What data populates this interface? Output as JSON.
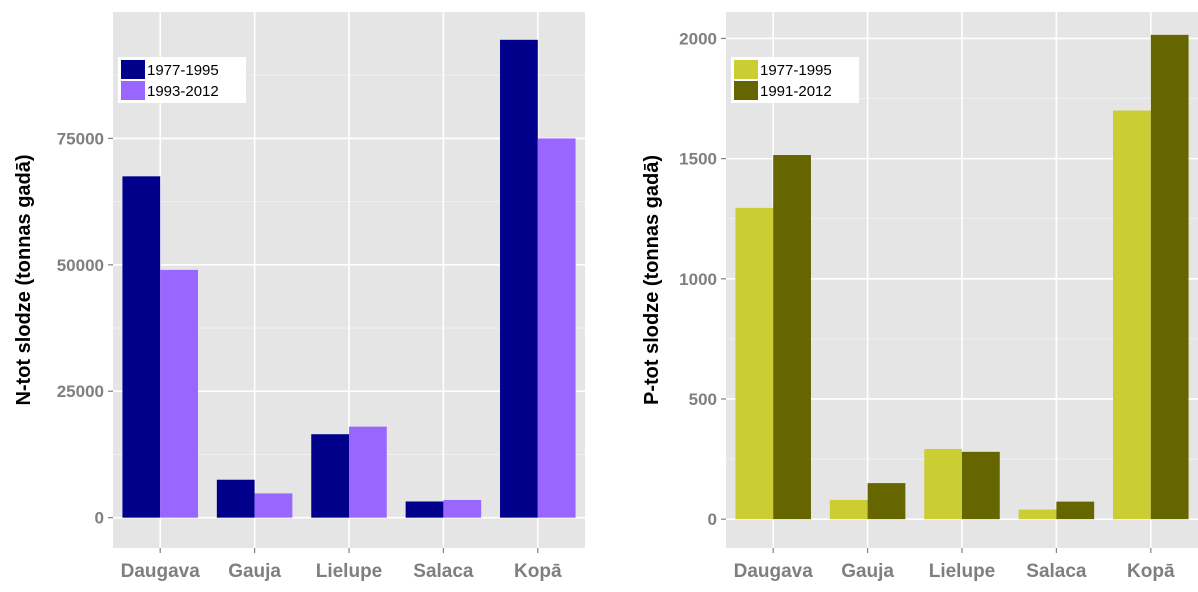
{
  "chart_data": [
    {
      "type": "bar",
      "ylabel": "N-tot slodze (tonnas gadā)",
      "xlabel": "",
      "categories": [
        "Daugava",
        "Gauja",
        "Lielupe",
        "Salaca",
        "Kopā"
      ],
      "series": [
        {
          "name": "1977-1995",
          "color": "#00008b",
          "values": [
            67500,
            7500,
            16500,
            3200,
            94500
          ]
        },
        {
          "name": "1993-2012",
          "color": "#9966ff",
          "values": [
            49000,
            4800,
            18000,
            3500,
            75000
          ]
        }
      ],
      "ylim": [
        -6000,
        100000
      ],
      "yticks": [
        0,
        25000,
        50000,
        75000
      ],
      "legend_position": "top-left",
      "grid": true
    },
    {
      "type": "bar",
      "ylabel": "P-tot slodze (tonnas gadā)",
      "xlabel": "",
      "categories": [
        "Daugava",
        "Gauja",
        "Lielupe",
        "Salaca",
        "Kopā"
      ],
      "series": [
        {
          "name": "1977-1995",
          "color": "#cccc33",
          "values": [
            1295,
            80,
            292,
            40,
            1700
          ]
        },
        {
          "name": "1991-2012",
          "color": "#666600",
          "values": [
            1515,
            150,
            280,
            73,
            2015
          ]
        }
      ],
      "ylim": [
        -120,
        2110
      ],
      "yticks": [
        0,
        500,
        1000,
        1500,
        2000
      ],
      "legend_position": "top-left",
      "grid": true
    }
  ]
}
